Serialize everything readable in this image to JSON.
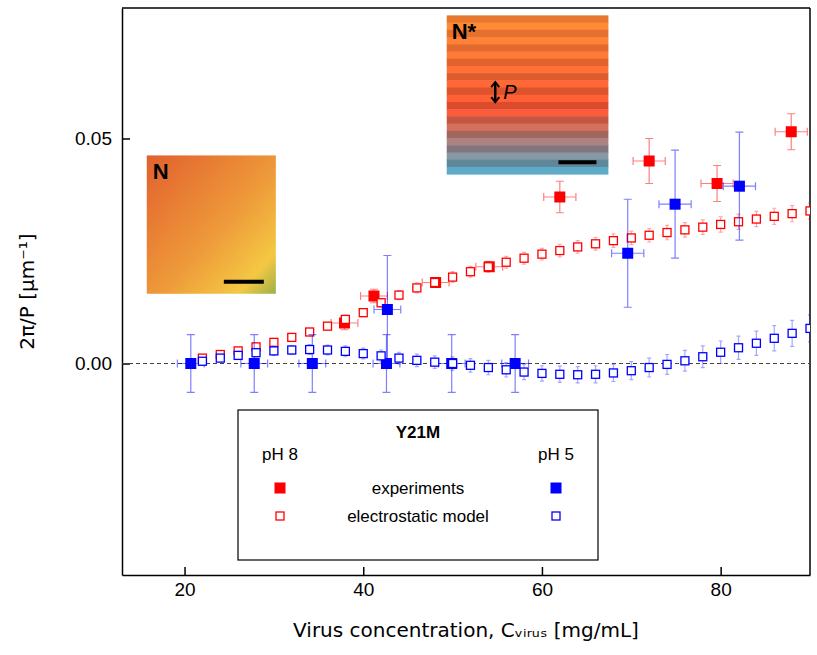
{
  "chart_data": {
    "type": "scatter",
    "x_label": "Virus concentration, Cᵥᵢᵣᵤₛ [mg/mL]",
    "y_label": "2π/P [μm⁻¹]",
    "legend_title": "Y21M",
    "legend": "bottom",
    "xlim": [
      13,
      90
    ],
    "ylim": [
      -0.047,
      0.079
    ],
    "xticks": [
      20,
      40,
      60,
      80
    ],
    "yticks": [
      {
        "value": 0,
        "label": "0.00"
      },
      {
        "value": 0.05,
        "label": "0.05"
      }
    ],
    "baseline": 0,
    "annotations": [
      {
        "text": "N"
      },
      {
        "text": "N*"
      },
      {
        "text": "P"
      }
    ],
    "series": [
      {
        "name": "experiments",
        "condition": "pH 8",
        "color": "#ff0000",
        "marker": "square",
        "x": [
          37.9,
          41.2,
          48.1,
          54.1,
          62.0,
          72.0,
          79.6,
          87.9
        ],
        "values": [
          0.009,
          0.015,
          0.018,
          0.0215,
          0.037,
          0.045,
          0.04,
          0.0515
        ],
        "errors": [
          0.0015,
          0.0015,
          0.001,
          0.001,
          0.0035,
          0.005,
          0.004,
          0.004
        ],
        "x_errors": [
          1.5,
          1.5,
          1.5,
          1.5,
          1.8,
          1.8,
          1.8,
          1.8
        ]
      },
      {
        "name": "electrostatic model",
        "condition": "pH 8",
        "color": "#ff0000",
        "marker": "open-square",
        "x": [
          22,
          24,
          26,
          28,
          30,
          32,
          34,
          36,
          38,
          40,
          42,
          44,
          46,
          48,
          50,
          52,
          54,
          56,
          58,
          60,
          62,
          64,
          66,
          68,
          70,
          72,
          74,
          76,
          78,
          80,
          82,
          84,
          86,
          88,
          90
        ],
        "values": [
          0.0012,
          0.002,
          0.0028,
          0.0037,
          0.0047,
          0.0058,
          0.007,
          0.0083,
          0.0098,
          0.0113,
          0.0135,
          0.0152,
          0.0168,
          0.018,
          0.0192,
          0.0204,
          0.0215,
          0.0225,
          0.0234,
          0.0243,
          0.0251,
          0.0259,
          0.0266,
          0.0273,
          0.0279,
          0.0285,
          0.0291,
          0.0297,
          0.0303,
          0.0309,
          0.0315,
          0.0321,
          0.0327,
          0.0333,
          0.0339
        ],
        "errors": [
          0.0005,
          0.0005,
          0.0006,
          0.0006,
          0.0007,
          0.0007,
          0.0008,
          0.0008,
          0.0009,
          0.0009,
          0.001,
          0.001,
          0.0011,
          0.0011,
          0.0012,
          0.0012,
          0.0012,
          0.0013,
          0.0013,
          0.0013,
          0.0014,
          0.0014,
          0.0014,
          0.0015,
          0.0015,
          0.0015,
          0.0016,
          0.0016,
          0.0016,
          0.0017,
          0.0017,
          0.0017,
          0.0018,
          0.0018,
          0.0018
        ]
      },
      {
        "name": "experiments",
        "condition": "pH 5",
        "color": "#0000ff",
        "marker": "square",
        "x": [
          20.7,
          27.8,
          34.3,
          42.6,
          42.7,
          49.9,
          57.0,
          69.6,
          74.9,
          82.1
        ],
        "values": [
          0,
          0,
          0,
          0,
          0.012,
          0,
          0,
          0.0245,
          0.0354,
          0.0394
        ],
        "errors": [
          0.0064,
          0.0064,
          0.0064,
          0.0064,
          0.012,
          0.0064,
          0.0064,
          0.012,
          0.012,
          0.012
        ],
        "x_errors": [
          1.5,
          1.5,
          1.5,
          1.5,
          1.5,
          1.5,
          1.5,
          1.8,
          1.8,
          1.8
        ]
      },
      {
        "name": "electrostatic model",
        "condition": "pH 5",
        "color": "#0000ff",
        "marker": "open-square",
        "x": [
          22,
          24,
          26,
          28,
          30,
          32,
          34,
          36,
          38,
          40,
          42,
          44,
          46,
          48,
          50,
          52,
          54,
          56,
          58,
          60,
          62,
          64,
          66,
          68,
          70,
          72,
          74,
          76,
          78,
          80,
          82,
          84,
          86,
          88,
          90
        ],
        "values": [
          0.0005,
          0.0012,
          0.0018,
          0.0024,
          0.0028,
          0.003,
          0.0031,
          0.003,
          0.0027,
          0.0022,
          0.0017,
          0.0012,
          0.0007,
          0.0003,
          0,
          -0.0004,
          -0.0009,
          -0.0014,
          -0.0019,
          -0.0022,
          -0.0024,
          -0.0025,
          -0.0024,
          -0.0021,
          -0.0016,
          -0.0009,
          -0.0002,
          0.0006,
          0.0015,
          0.0025,
          0.0035,
          0.0045,
          0.0056,
          0.0067,
          0.0078
        ],
        "errors": [
          0.0008,
          0.0008,
          0.0009,
          0.0009,
          0.001,
          0.001,
          0.0011,
          0.0011,
          0.0012,
          0.0012,
          0.0013,
          0.0013,
          0.0014,
          0.0014,
          0.0015,
          0.0015,
          0.0016,
          0.0016,
          0.0017,
          0.0017,
          0.0018,
          0.0018,
          0.0019,
          0.0019,
          0.002,
          0.0021,
          0.0022,
          0.0023,
          0.0024,
          0.0025,
          0.0026,
          0.0027,
          0.0028,
          0.0029,
          0.003
        ]
      }
    ]
  }
}
